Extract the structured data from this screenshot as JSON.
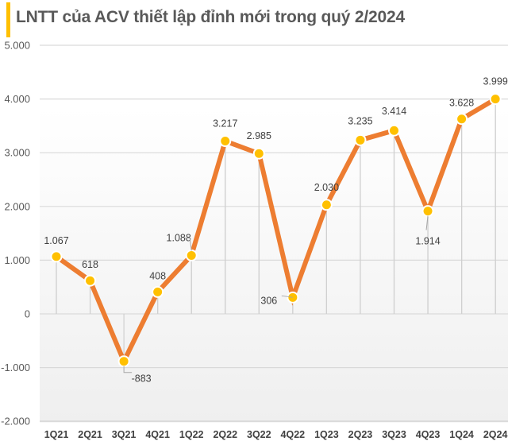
{
  "title": "LNTT của ACV thiết lập đỉnh mới trong quý 2/2024",
  "colors": {
    "accent_bar": "#FFC000",
    "line": "#ED7D31",
    "marker": "#FFC000",
    "grid": "#D9D9D9",
    "text": "#595959"
  },
  "chart_data": {
    "type": "line",
    "title": "LNTT của ACV thiết lập đỉnh mới trong quý 2/2024",
    "xlabel": "",
    "ylabel": "",
    "categories": [
      "1Q21",
      "2Q21",
      "3Q21",
      "4Q21",
      "1Q22",
      "2Q22",
      "3Q22",
      "4Q22",
      "1Q23",
      "2Q23",
      "3Q23",
      "4Q23",
      "1Q24",
      "2Q24"
    ],
    "values": [
      1067,
      618,
      -883,
      408,
      1088,
      3217,
      2985,
      306,
      2030,
      3235,
      3414,
      1914,
      3628,
      3999
    ],
    "data_labels": [
      "1.067",
      "618",
      "-883",
      "408",
      "1.088",
      "3.217",
      "2.985",
      "306",
      "2.030",
      "3.235",
      "3.414",
      "1.914",
      "3.628",
      "3.999"
    ],
    "ylim": [
      -2000,
      5000
    ],
    "yticks": [
      -2000,
      -1000,
      0,
      1000,
      2000,
      3000,
      4000,
      5000
    ],
    "ytick_labels": [
      "-2.000",
      "-1.000",
      "0",
      "1.000",
      "2.000",
      "3.000",
      "4.000",
      "5.000"
    ],
    "grid": true,
    "legend": null
  }
}
